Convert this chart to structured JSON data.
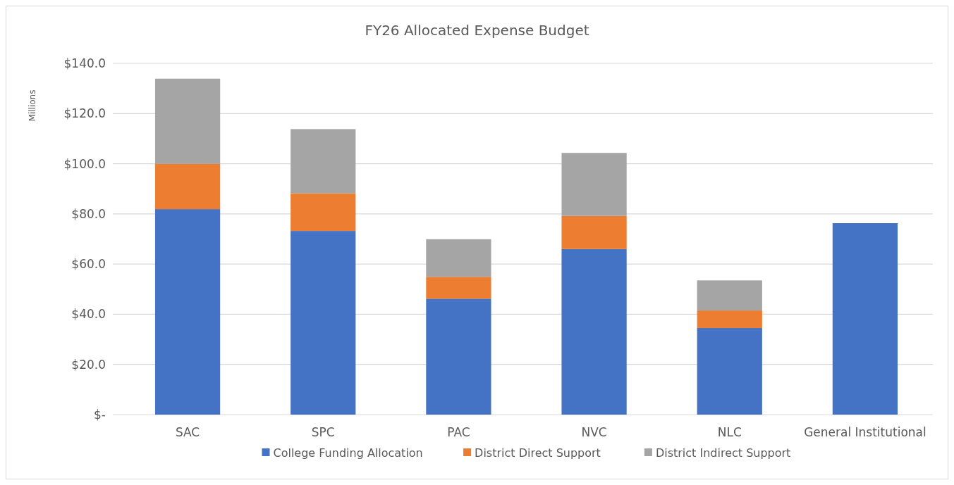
{
  "chart_data": {
    "type": "bar",
    "title": "FY26 Allocated Expense Budget",
    "ylabel": "Millions",
    "stacked": true,
    "categories": [
      "SAC",
      "SPC",
      "PAC",
      "NVC",
      "NLC",
      "General Institutional"
    ],
    "series": [
      {
        "name": "College Funding Allocation",
        "color": "#4472c4",
        "values": [
          81.9,
          73.2,
          46.2,
          66.0,
          34.5,
          76.3
        ]
      },
      {
        "name": "District Direct Support",
        "color": "#ed7d31",
        "values": [
          18.0,
          15.0,
          8.7,
          13.2,
          7.0,
          null
        ]
      },
      {
        "name": "District Indirect Support",
        "color": "#a5a5a5",
        "values": [
          34.0,
          25.6,
          15.0,
          25.1,
          12.0,
          null
        ]
      }
    ],
    "ylim": [
      0,
      140
    ],
    "yticks": [
      {
        "value": 0,
        "label": "$-"
      },
      {
        "value": 20,
        "label": "$20.0"
      },
      {
        "value": 40,
        "label": "$40.0"
      },
      {
        "value": 60,
        "label": "$60.0"
      },
      {
        "value": 80,
        "label": "$80.0"
      },
      {
        "value": 100,
        "label": "$100.0"
      },
      {
        "value": 120,
        "label": "$120.0"
      },
      {
        "value": 140,
        "label": "$140.0"
      }
    ],
    "grid": "y",
    "legend": "bottom"
  }
}
